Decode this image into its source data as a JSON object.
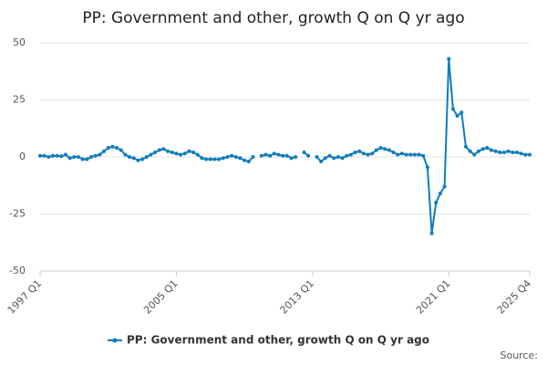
{
  "chart_data": {
    "type": "line",
    "title": "PP: Government and other, growth Q on Q yr ago",
    "source": "Source:",
    "categories": [
      "1997 Q1",
      null,
      null,
      null,
      null,
      null,
      null,
      null,
      null,
      null,
      null,
      null,
      null,
      null,
      null,
      null,
      null,
      null,
      null,
      null,
      null,
      null,
      null,
      null,
      null,
      null,
      null,
      null,
      null,
      null,
      null,
      null,
      "2005 Q1",
      null,
      null,
      null,
      null,
      null,
      null,
      null,
      null,
      null,
      null,
      null,
      null,
      null,
      null,
      null,
      null,
      null,
      null,
      null,
      null,
      null,
      null,
      null,
      null,
      null,
      null,
      null,
      null,
      null,
      null,
      null,
      "2013 Q1",
      null,
      null,
      null,
      null,
      null,
      null,
      null,
      null,
      null,
      null,
      null,
      null,
      null,
      null,
      null,
      null,
      null,
      null,
      null,
      null,
      null,
      null,
      null,
      null,
      null,
      null,
      null,
      null,
      null,
      null,
      null,
      "2021 Q1",
      null,
      null,
      null,
      null,
      null,
      null,
      null,
      null,
      null,
      null,
      null,
      null,
      null,
      null,
      null,
      null,
      null,
      null,
      "2025 Q4"
    ],
    "series": [
      {
        "name": "PP: Government and other, growth Q on Q yr ago",
        "color": "#0f7dba",
        "values": [
          0.5,
          0.5,
          0,
          0.5,
          0.5,
          0.3,
          1,
          -0.5,
          0,
          0,
          -1,
          -1,
          0,
          0.5,
          1,
          2.5,
          4,
          4.5,
          4,
          3,
          1,
          0,
          -0.5,
          -1.5,
          -1,
          0,
          1,
          2,
          3,
          3.5,
          2.5,
          2,
          1.5,
          1,
          1.5,
          2.5,
          2,
          1,
          -0.5,
          -1,
          -1,
          -1,
          -1,
          -0.5,
          0,
          0.5,
          0,
          -0.5,
          -1.5,
          -2,
          0,
          null,
          0.5,
          1,
          0.5,
          1.5,
          1,
          0.5,
          0.5,
          -0.5,
          0,
          null,
          2,
          0.5,
          null,
          0,
          -2,
          -0.5,
          0.5,
          -0.5,
          0,
          -0.5,
          0.5,
          1,
          2,
          2.5,
          1.5,
          1,
          1.5,
          3,
          4,
          3.5,
          3,
          2,
          1,
          1.5,
          1,
          1,
          1,
          1,
          0.5,
          -4.5,
          -33.5,
          -20,
          -16,
          -13,
          43,
          21,
          18,
          19.5,
          4.5,
          2.5,
          1,
          2.5,
          3.5,
          4,
          3,
          2.5,
          2,
          2,
          2.5,
          2,
          2,
          1.5,
          1,
          1
        ]
      }
    ],
    "ylim": [
      -50,
      50
    ],
    "yticks": [
      -50,
      -25,
      0,
      25,
      50
    ],
    "grid": true
  }
}
